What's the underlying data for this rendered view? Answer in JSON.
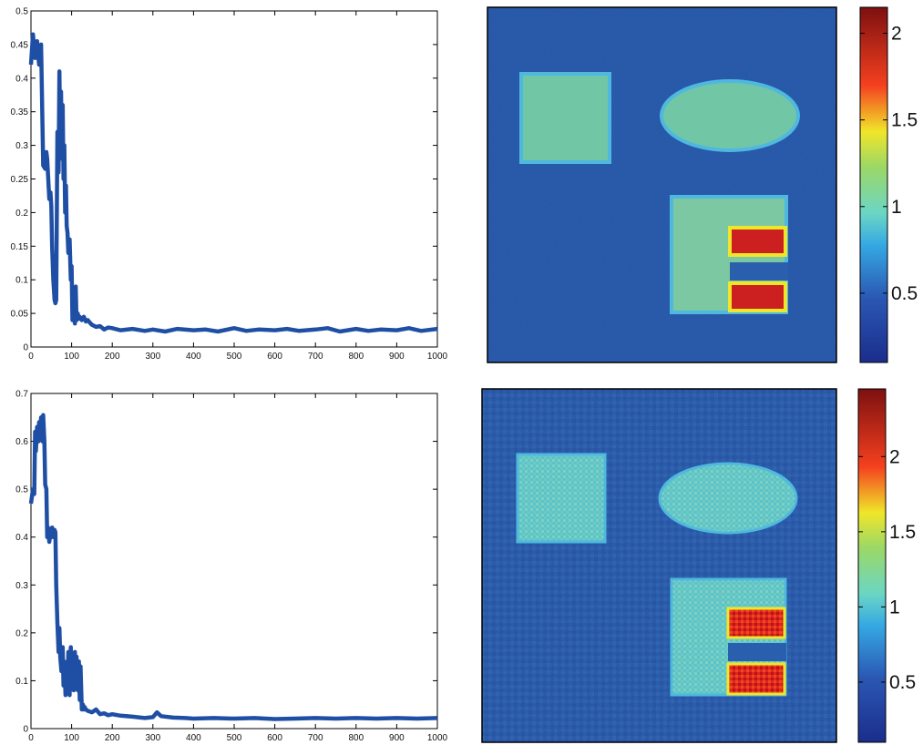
{
  "chart_data": [
    {
      "type": "line",
      "xlim": [
        0,
        1000
      ],
      "ylim": [
        0,
        0.5
      ],
      "xticks": [
        "0",
        "100",
        "200",
        "300",
        "400",
        "500",
        "600",
        "700",
        "800",
        "900",
        "1000"
      ],
      "yticks": [
        "0",
        "0.05",
        "0.1",
        "0.15",
        "0.2",
        "0.25",
        "0.3",
        "0.35",
        "0.4",
        "0.45",
        "0.5"
      ],
      "series_color": "#1f4fa5",
      "x": [
        0,
        5,
        10,
        15,
        20,
        25,
        30,
        35,
        38,
        40,
        45,
        48,
        50,
        52,
        55,
        58,
        60,
        62,
        65,
        68,
        70,
        72,
        74,
        76,
        78,
        80,
        82,
        84,
        86,
        88,
        90,
        92,
        95,
        98,
        100,
        102,
        105,
        108,
        110,
        112,
        115,
        118,
        120,
        125,
        130,
        135,
        140,
        145,
        150,
        160,
        170,
        180,
        190,
        200,
        220,
        250,
        280,
        300,
        330,
        360,
        400,
        430,
        460,
        500,
        530,
        560,
        600,
        630,
        660,
        700,
        730,
        760,
        800,
        830,
        860,
        900,
        930,
        960,
        1000
      ],
      "y": [
        0.42,
        0.465,
        0.43,
        0.455,
        0.42,
        0.45,
        0.27,
        0.265,
        0.29,
        0.28,
        0.22,
        0.23,
        0.21,
        0.15,
        0.1,
        0.07,
        0.065,
        0.07,
        0.32,
        0.26,
        0.41,
        0.3,
        0.38,
        0.28,
        0.36,
        0.25,
        0.3,
        0.2,
        0.24,
        0.18,
        0.17,
        0.14,
        0.16,
        0.1,
        0.12,
        0.04,
        0.06,
        0.035,
        0.09,
        0.04,
        0.05,
        0.042,
        0.045,
        0.04,
        0.045,
        0.038,
        0.04,
        0.036,
        0.033,
        0.03,
        0.031,
        0.026,
        0.029,
        0.028,
        0.025,
        0.027,
        0.024,
        0.026,
        0.023,
        0.027,
        0.025,
        0.026,
        0.023,
        0.028,
        0.024,
        0.026,
        0.025,
        0.027,
        0.024,
        0.026,
        0.028,
        0.023,
        0.027,
        0.024,
        0.026,
        0.025,
        0.028,
        0.024,
        0.027
      ]
    },
    {
      "type": "heatmap",
      "colorbar_ticks": [
        "0.5",
        "1",
        "1.5",
        "2"
      ],
      "colorbar_range": [
        0.1,
        2.15
      ],
      "background_value": 0.45,
      "shapes": [
        {
          "kind": "square",
          "value": 0.95
        },
        {
          "kind": "ellipse",
          "value": 0.95
        },
        {
          "kind": "block",
          "value": 0.95
        },
        {
          "kind": "bar",
          "value": 2.0
        },
        {
          "kind": "bar",
          "value": 2.0
        }
      ]
    },
    {
      "type": "line",
      "xlim": [
        0,
        1000
      ],
      "ylim": [
        0,
        0.7
      ],
      "xticks": [
        "0",
        "100",
        "200",
        "300",
        "400",
        "500",
        "600",
        "700",
        "800",
        "900",
        "1000"
      ],
      "yticks": [
        "0",
        "0.1",
        "0.2",
        "0.3",
        "0.4",
        "0.5",
        "0.6",
        "0.7"
      ],
      "series_color": "#1f4fa5",
      "x": [
        0,
        5,
        8,
        10,
        12,
        15,
        18,
        20,
        22,
        25,
        28,
        30,
        33,
        35,
        38,
        40,
        42,
        45,
        48,
        50,
        52,
        55,
        58,
        60,
        62,
        65,
        68,
        70,
        72,
        75,
        78,
        80,
        82,
        85,
        88,
        90,
        92,
        95,
        98,
        100,
        102,
        105,
        108,
        110,
        112,
        115,
        118,
        120,
        122,
        125,
        128,
        130,
        132,
        135,
        140,
        150,
        160,
        170,
        180,
        190,
        200,
        220,
        250,
        280,
        300,
        310,
        320,
        350,
        380,
        400,
        450,
        500,
        550,
        600,
        650,
        700,
        750,
        800,
        850,
        900,
        950,
        1000
      ],
      "y": [
        0.47,
        0.5,
        0.49,
        0.62,
        0.58,
        0.63,
        0.6,
        0.64,
        0.62,
        0.65,
        0.6,
        0.655,
        0.6,
        0.51,
        0.5,
        0.4,
        0.42,
        0.39,
        0.41,
        0.4,
        0.42,
        0.4,
        0.415,
        0.41,
        0.3,
        0.22,
        0.16,
        0.21,
        0.15,
        0.12,
        0.17,
        0.09,
        0.14,
        0.07,
        0.13,
        0.08,
        0.16,
        0.07,
        0.17,
        0.11,
        0.14,
        0.08,
        0.16,
        0.1,
        0.15,
        0.08,
        0.14,
        0.06,
        0.13,
        0.04,
        0.05,
        0.04,
        0.045,
        0.04,
        0.037,
        0.034,
        0.04,
        0.03,
        0.032,
        0.028,
        0.03,
        0.027,
        0.025,
        0.022,
        0.024,
        0.034,
        0.026,
        0.023,
        0.022,
        0.021,
        0.022,
        0.021,
        0.022,
        0.02,
        0.021,
        0.022,
        0.021,
        0.022,
        0.021,
        0.022,
        0.021,
        0.022
      ]
    },
    {
      "type": "heatmap",
      "colorbar_ticks": [
        "0.5",
        "1",
        "1.5",
        "2"
      ],
      "colorbar_range": [
        0.1,
        2.45
      ],
      "background_value": 0.45,
      "shapes": [
        {
          "kind": "square",
          "value": 0.95
        },
        {
          "kind": "ellipse",
          "value": 0.95
        },
        {
          "kind": "block",
          "value": 0.95
        },
        {
          "kind": "bar",
          "value": 2.05
        },
        {
          "kind": "bar",
          "value": 2.05
        }
      ]
    }
  ]
}
